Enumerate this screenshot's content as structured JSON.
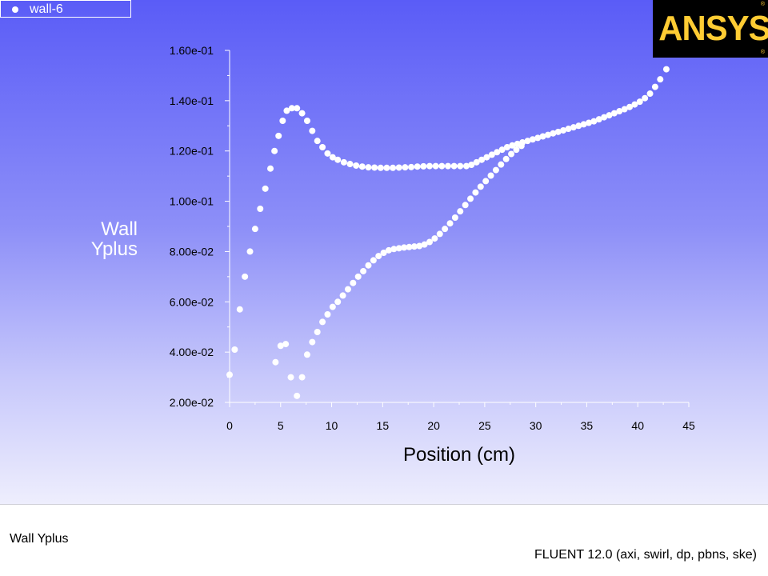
{
  "legend": {
    "label": "wall-6"
  },
  "logo": {
    "text": "ANSYS",
    "mark": "®"
  },
  "footer": {
    "left_text": "Wall Yplus",
    "right_text": "FLUENT 12.0 (axi, swirl, dp, pbns, ske)"
  },
  "colors": {
    "points": "#ffffff",
    "axis": "#ffffff",
    "logo_bg": "#000000",
    "logo_text": "#ffcc33"
  },
  "chart_data": {
    "type": "scatter",
    "xlabel": "Position (cm)",
    "ylabel": [
      "Wall",
      "Yplus"
    ],
    "xlim": [
      0,
      45
    ],
    "ylim": [
      0.02,
      0.16
    ],
    "xticks": [
      0,
      5,
      10,
      15,
      20,
      25,
      30,
      35,
      40,
      45
    ],
    "xtick_labels": [
      "0",
      "5",
      "10",
      "15",
      "20",
      "25",
      "30",
      "35",
      "40",
      "45"
    ],
    "yticks": [
      0.02,
      0.04,
      0.06,
      0.08,
      0.1,
      0.12,
      0.14,
      0.16
    ],
    "ytick_labels": [
      "2.00e-02",
      "4.00e-02",
      "6.00e-02",
      "8.00e-02",
      "1.00e-01",
      "1.20e-01",
      "1.40e-01",
      "1.60e-01"
    ],
    "grid": false,
    "legend_position": "top-left",
    "series": [
      {
        "name": "wall-6",
        "points": [
          [
            0.0,
            0.031
          ],
          [
            0.5,
            0.041
          ],
          [
            1.0,
            0.057
          ],
          [
            1.5,
            0.07
          ],
          [
            2.0,
            0.08
          ],
          [
            2.5,
            0.089
          ],
          [
            3.0,
            0.097
          ],
          [
            3.5,
            0.105
          ],
          [
            4.0,
            0.113
          ],
          [
            4.4,
            0.12
          ],
          [
            4.8,
            0.126
          ],
          [
            5.2,
            0.132
          ],
          [
            5.6,
            0.136
          ],
          [
            6.1,
            0.137
          ],
          [
            6.6,
            0.137
          ],
          [
            7.1,
            0.135
          ],
          [
            7.6,
            0.132
          ],
          [
            8.1,
            0.128
          ],
          [
            8.6,
            0.124
          ],
          [
            9.1,
            0.1215
          ],
          [
            9.6,
            0.119
          ],
          [
            10.1,
            0.1175
          ],
          [
            10.6,
            0.1165
          ],
          [
            11.2,
            0.1155
          ],
          [
            11.8,
            0.1148
          ],
          [
            12.4,
            0.1142
          ],
          [
            13.0,
            0.1138
          ],
          [
            13.6,
            0.1135
          ],
          [
            14.2,
            0.1134
          ],
          [
            14.8,
            0.1133
          ],
          [
            15.4,
            0.1133
          ],
          [
            16.0,
            0.1133
          ],
          [
            16.6,
            0.1134
          ],
          [
            17.2,
            0.1135
          ],
          [
            17.8,
            0.1136
          ],
          [
            18.4,
            0.1138
          ],
          [
            19.0,
            0.1139
          ],
          [
            19.6,
            0.114
          ],
          [
            20.2,
            0.114
          ],
          [
            20.8,
            0.114
          ],
          [
            21.4,
            0.114
          ],
          [
            22.0,
            0.114
          ],
          [
            22.6,
            0.114
          ],
          [
            23.2,
            0.114
          ],
          [
            23.7,
            0.1145
          ],
          [
            24.2,
            0.1155
          ],
          [
            24.7,
            0.1165
          ],
          [
            25.2,
            0.1175
          ],
          [
            25.7,
            0.1185
          ],
          [
            26.2,
            0.1195
          ],
          [
            26.7,
            0.1205
          ],
          [
            27.2,
            0.1215
          ],
          [
            27.7,
            0.1222
          ],
          [
            28.2,
            0.1228
          ],
          [
            28.7,
            0.1234
          ],
          [
            29.2,
            0.124
          ],
          [
            29.7,
            0.1246
          ],
          [
            30.2,
            0.1252
          ],
          [
            30.7,
            0.1258
          ],
          [
            31.2,
            0.1264
          ],
          [
            31.7,
            0.127
          ],
          [
            32.2,
            0.1276
          ],
          [
            32.7,
            0.1282
          ],
          [
            33.2,
            0.1288
          ],
          [
            33.7,
            0.1294
          ],
          [
            34.2,
            0.13
          ],
          [
            34.7,
            0.1306
          ],
          [
            35.2,
            0.1312
          ],
          [
            35.7,
            0.1318
          ],
          [
            36.2,
            0.1326
          ],
          [
            36.7,
            0.1334
          ],
          [
            37.2,
            0.1342
          ],
          [
            37.7,
            0.135
          ],
          [
            38.2,
            0.1358
          ],
          [
            38.7,
            0.1366
          ],
          [
            39.2,
            0.1375
          ],
          [
            39.7,
            0.1385
          ],
          [
            40.2,
            0.1396
          ],
          [
            40.7,
            0.141
          ],
          [
            41.2,
            0.1428
          ],
          [
            41.7,
            0.1455
          ],
          [
            42.2,
            0.1485
          ],
          [
            42.8,
            0.1525
          ],
          [
            4.5,
            0.036
          ],
          [
            5.0,
            0.0425
          ],
          [
            5.5,
            0.0432
          ],
          [
            6.0,
            0.03
          ],
          [
            6.6,
            0.0226
          ],
          [
            7.1,
            0.03
          ],
          [
            7.6,
            0.039
          ],
          [
            8.1,
            0.044
          ],
          [
            8.6,
            0.048
          ],
          [
            9.1,
            0.052
          ],
          [
            9.6,
            0.055
          ],
          [
            10.1,
            0.058
          ],
          [
            10.6,
            0.06
          ],
          [
            11.1,
            0.0625
          ],
          [
            11.6,
            0.065
          ],
          [
            12.1,
            0.0675
          ],
          [
            12.6,
            0.07
          ],
          [
            13.1,
            0.0722
          ],
          [
            13.6,
            0.0745
          ],
          [
            14.1,
            0.0765
          ],
          [
            14.6,
            0.0782
          ],
          [
            15.1,
            0.0795
          ],
          [
            15.6,
            0.0805
          ],
          [
            16.1,
            0.081
          ],
          [
            16.6,
            0.0813
          ],
          [
            17.1,
            0.0816
          ],
          [
            17.6,
            0.0818
          ],
          [
            18.1,
            0.082
          ],
          [
            18.6,
            0.0822
          ],
          [
            19.1,
            0.0828
          ],
          [
            19.6,
            0.0838
          ],
          [
            20.1,
            0.0852
          ],
          [
            20.6,
            0.087
          ],
          [
            21.1,
            0.089
          ],
          [
            21.6,
            0.0912
          ],
          [
            22.1,
            0.0935
          ],
          [
            22.6,
            0.096
          ],
          [
            23.1,
            0.0985
          ],
          [
            23.6,
            0.101
          ],
          [
            24.1,
            0.1035
          ],
          [
            24.6,
            0.1058
          ],
          [
            25.1,
            0.108
          ],
          [
            25.6,
            0.1102
          ],
          [
            26.1,
            0.1124
          ],
          [
            26.6,
            0.1146
          ],
          [
            27.1,
            0.1168
          ],
          [
            27.6,
            0.1188
          ],
          [
            28.1,
            0.1205
          ],
          [
            28.6,
            0.122
          ]
        ]
      }
    ]
  }
}
